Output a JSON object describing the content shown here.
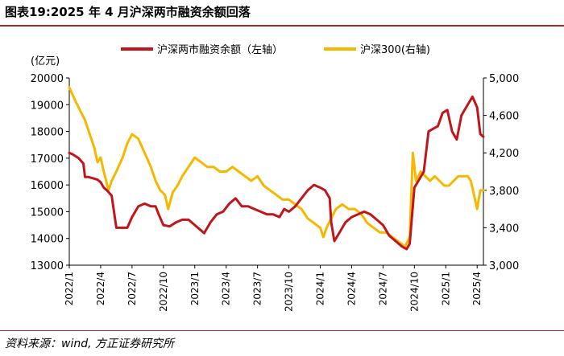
{
  "title": "图表19:2025 年 4 月沪深两市融资余额回落",
  "source": "资料来源：wind, 方正证券研究所",
  "chart_data": {
    "type": "line",
    "unit_label": "(亿元)",
    "x_ticks": [
      "2022/1",
      "2022/4",
      "2022/7",
      "2022/10",
      "2023/1",
      "2023/4",
      "2023/7",
      "2023/10",
      "2024/1",
      "2024/4",
      "2024/7",
      "2024/10",
      "2025/1",
      "2025/4"
    ],
    "y_left": {
      "range": [
        13000,
        20000
      ],
      "ticks": [
        "13000",
        "14000",
        "15000",
        "16000",
        "17000",
        "18000",
        "19000",
        "20000"
      ]
    },
    "y_right": {
      "range": [
        3000,
        5000
      ],
      "ticks": [
        "3,000",
        "3,400",
        "3,800",
        "4,200",
        "4,600",
        "5,000"
      ]
    },
    "colors": {
      "margin": "#c0161b",
      "csi": "#f5b800"
    },
    "series": [
      {
        "name": "沪深两市融资余额（左轴）",
        "axis": "left",
        "points": [
          [
            0,
            17200
          ],
          [
            0.1,
            17150
          ],
          [
            0.3,
            17000
          ],
          [
            0.45,
            16800
          ],
          [
            0.5,
            16300
          ],
          [
            0.6,
            16300
          ],
          [
            0.75,
            16250
          ],
          [
            0.9,
            16200
          ],
          [
            1.0,
            16100
          ],
          [
            1.1,
            15900
          ],
          [
            1.2,
            15800
          ],
          [
            1.35,
            15600
          ],
          [
            1.5,
            14400
          ],
          [
            1.65,
            14400
          ],
          [
            1.85,
            14400
          ],
          [
            2.0,
            14800
          ],
          [
            2.2,
            15200
          ],
          [
            2.4,
            15300
          ],
          [
            2.6,
            15200
          ],
          [
            2.75,
            15200
          ],
          [
            2.85,
            14900
          ],
          [
            3.0,
            14500
          ],
          [
            3.2,
            14450
          ],
          [
            3.4,
            14600
          ],
          [
            3.6,
            14700
          ],
          [
            3.8,
            14700
          ],
          [
            4.0,
            14500
          ],
          [
            4.2,
            14300
          ],
          [
            4.3,
            14200
          ],
          [
            4.5,
            14600
          ],
          [
            4.7,
            14900
          ],
          [
            4.9,
            15000
          ],
          [
            5.1,
            15300
          ],
          [
            5.3,
            15500
          ],
          [
            5.5,
            15200
          ],
          [
            5.7,
            15200
          ],
          [
            5.9,
            15100
          ],
          [
            6.1,
            15000
          ],
          [
            6.3,
            14900
          ],
          [
            6.5,
            14900
          ],
          [
            6.7,
            14800
          ],
          [
            6.85,
            15100
          ],
          [
            7.0,
            15000
          ],
          [
            7.2,
            15200
          ],
          [
            7.4,
            15500
          ],
          [
            7.6,
            15800
          ],
          [
            7.8,
            16000
          ],
          [
            8.0,
            15900
          ],
          [
            8.15,
            15800
          ],
          [
            8.3,
            15500
          ],
          [
            8.35,
            14600
          ],
          [
            8.45,
            13900
          ],
          [
            8.6,
            14200
          ],
          [
            8.8,
            14600
          ],
          [
            9.0,
            14800
          ],
          [
            9.2,
            14900
          ],
          [
            9.4,
            15000
          ],
          [
            9.6,
            14900
          ],
          [
            9.8,
            14700
          ],
          [
            10.0,
            14500
          ],
          [
            10.2,
            14100
          ],
          [
            10.4,
            13900
          ],
          [
            10.6,
            13700
          ],
          [
            10.75,
            13600
          ],
          [
            10.85,
            13800
          ],
          [
            11.0,
            15900
          ],
          [
            11.15,
            16200
          ],
          [
            11.3,
            16500
          ],
          [
            11.45,
            18000
          ],
          [
            11.6,
            18100
          ],
          [
            11.75,
            18200
          ],
          [
            11.9,
            18700
          ],
          [
            12.05,
            18800
          ],
          [
            12.2,
            18000
          ],
          [
            12.35,
            17700
          ],
          [
            12.5,
            18600
          ],
          [
            12.7,
            19000
          ],
          [
            12.85,
            19300
          ],
          [
            13.0,
            18900
          ],
          [
            13.1,
            17900
          ],
          [
            13.2,
            17800
          ]
        ]
      },
      {
        "name": "沪深300(右轴)",
        "axis": "right",
        "points": [
          [
            0,
            4900
          ],
          [
            0.2,
            4750
          ],
          [
            0.35,
            4650
          ],
          [
            0.5,
            4550
          ],
          [
            0.65,
            4400
          ],
          [
            0.8,
            4250
          ],
          [
            0.9,
            4100
          ],
          [
            1.0,
            4150
          ],
          [
            1.1,
            4000
          ],
          [
            1.25,
            3800
          ],
          [
            1.35,
            3900
          ],
          [
            1.5,
            4000
          ],
          [
            1.7,
            4150
          ],
          [
            1.85,
            4300
          ],
          [
            2.0,
            4400
          ],
          [
            2.2,
            4350
          ],
          [
            2.4,
            4200
          ],
          [
            2.6,
            4050
          ],
          [
            2.75,
            3900
          ],
          [
            2.9,
            3800
          ],
          [
            3.05,
            3750
          ],
          [
            3.15,
            3600
          ],
          [
            3.3,
            3780
          ],
          [
            3.45,
            3850
          ],
          [
            3.6,
            3950
          ],
          [
            3.8,
            4050
          ],
          [
            4.0,
            4150
          ],
          [
            4.2,
            4100
          ],
          [
            4.4,
            4050
          ],
          [
            4.6,
            4050
          ],
          [
            4.8,
            4000
          ],
          [
            5.0,
            4000
          ],
          [
            5.2,
            4050
          ],
          [
            5.4,
            4000
          ],
          [
            5.6,
            3950
          ],
          [
            5.8,
            3900
          ],
          [
            6.0,
            3950
          ],
          [
            6.2,
            3850
          ],
          [
            6.4,
            3800
          ],
          [
            6.6,
            3750
          ],
          [
            6.8,
            3700
          ],
          [
            7.0,
            3700
          ],
          [
            7.2,
            3650
          ],
          [
            7.4,
            3600
          ],
          [
            7.6,
            3500
          ],
          [
            7.8,
            3450
          ],
          [
            8.0,
            3400
          ],
          [
            8.1,
            3300
          ],
          [
            8.2,
            3400
          ],
          [
            8.35,
            3500
          ],
          [
            8.5,
            3600
          ],
          [
            8.7,
            3650
          ],
          [
            8.9,
            3600
          ],
          [
            9.1,
            3600
          ],
          [
            9.3,
            3550
          ],
          [
            9.5,
            3450
          ],
          [
            9.7,
            3400
          ],
          [
            9.9,
            3350
          ],
          [
            10.1,
            3350
          ],
          [
            10.3,
            3300
          ],
          [
            10.5,
            3250
          ],
          [
            10.7,
            3200
          ],
          [
            10.85,
            3300
          ],
          [
            10.95,
            4200
          ],
          [
            11.05,
            3900
          ],
          [
            11.2,
            4000
          ],
          [
            11.35,
            3950
          ],
          [
            11.5,
            3900
          ],
          [
            11.65,
            3950
          ],
          [
            11.8,
            3900
          ],
          [
            11.95,
            3850
          ],
          [
            12.1,
            3850
          ],
          [
            12.25,
            3900
          ],
          [
            12.4,
            3950
          ],
          [
            12.55,
            3950
          ],
          [
            12.7,
            3950
          ],
          [
            12.8,
            3900
          ],
          [
            12.9,
            3750
          ],
          [
            13.0,
            3600
          ],
          [
            13.1,
            3800
          ],
          [
            13.2,
            3800
          ]
        ]
      }
    ]
  }
}
